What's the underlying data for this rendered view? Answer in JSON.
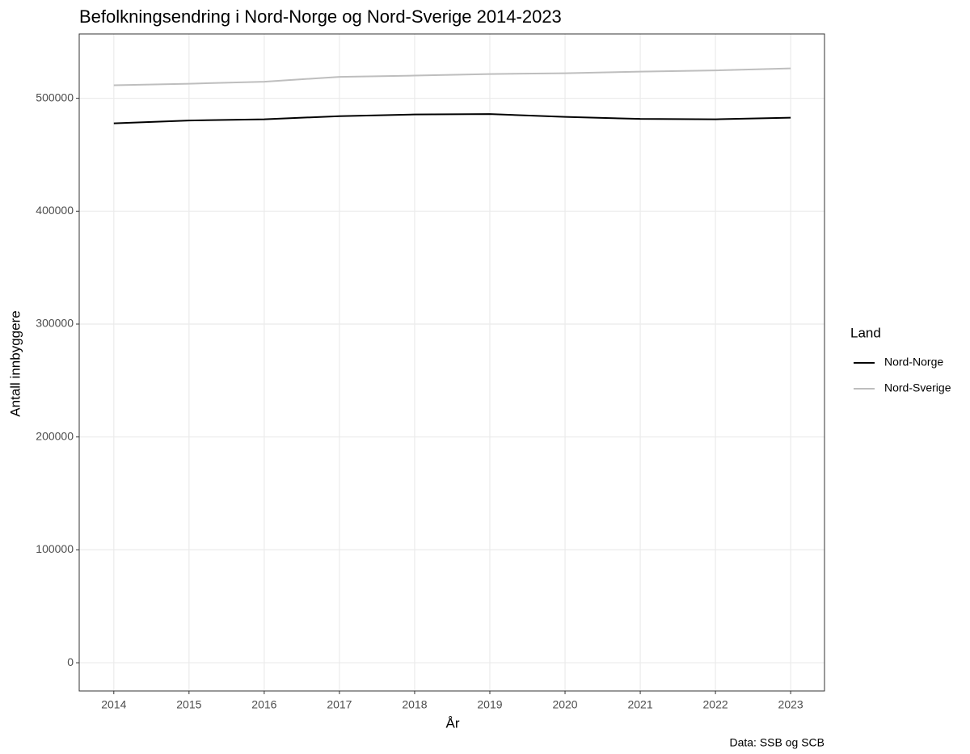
{
  "chart_data": {
    "type": "line",
    "title": "Befolkningsendring i Nord-Norge og Nord-Sverige 2014-2023",
    "x_label": "År",
    "y_label": "Antall innbyggere",
    "caption": "Data: SSB og SCB",
    "legend_title": "Land",
    "legend": "right",
    "grid": true,
    "x": [
      2014,
      2015,
      2016,
      2017,
      2018,
      2019,
      2020,
      2021,
      2022,
      2023
    ],
    "series": [
      {
        "name": "Nord-Norge",
        "color": "#000000",
        "values": [
          477800,
          480300,
          481400,
          484200,
          485700,
          486000,
          483500,
          481700,
          481400,
          482800
        ]
      },
      {
        "name": "Nord-Sverige",
        "color": "#bebebe",
        "values": [
          511500,
          512900,
          514700,
          519000,
          520100,
          521500,
          522200,
          523600,
          524700,
          526500
        ]
      }
    ],
    "xlim": [
      2013.54,
      2023.45
    ],
    "xticks": [
      2014,
      2015,
      2016,
      2017,
      2018,
      2019,
      2020,
      2021,
      2022,
      2023
    ],
    "ylim": [
      -25000,
      557000
    ],
    "yticks": [
      0,
      100000,
      200000,
      300000,
      400000,
      500000
    ]
  }
}
